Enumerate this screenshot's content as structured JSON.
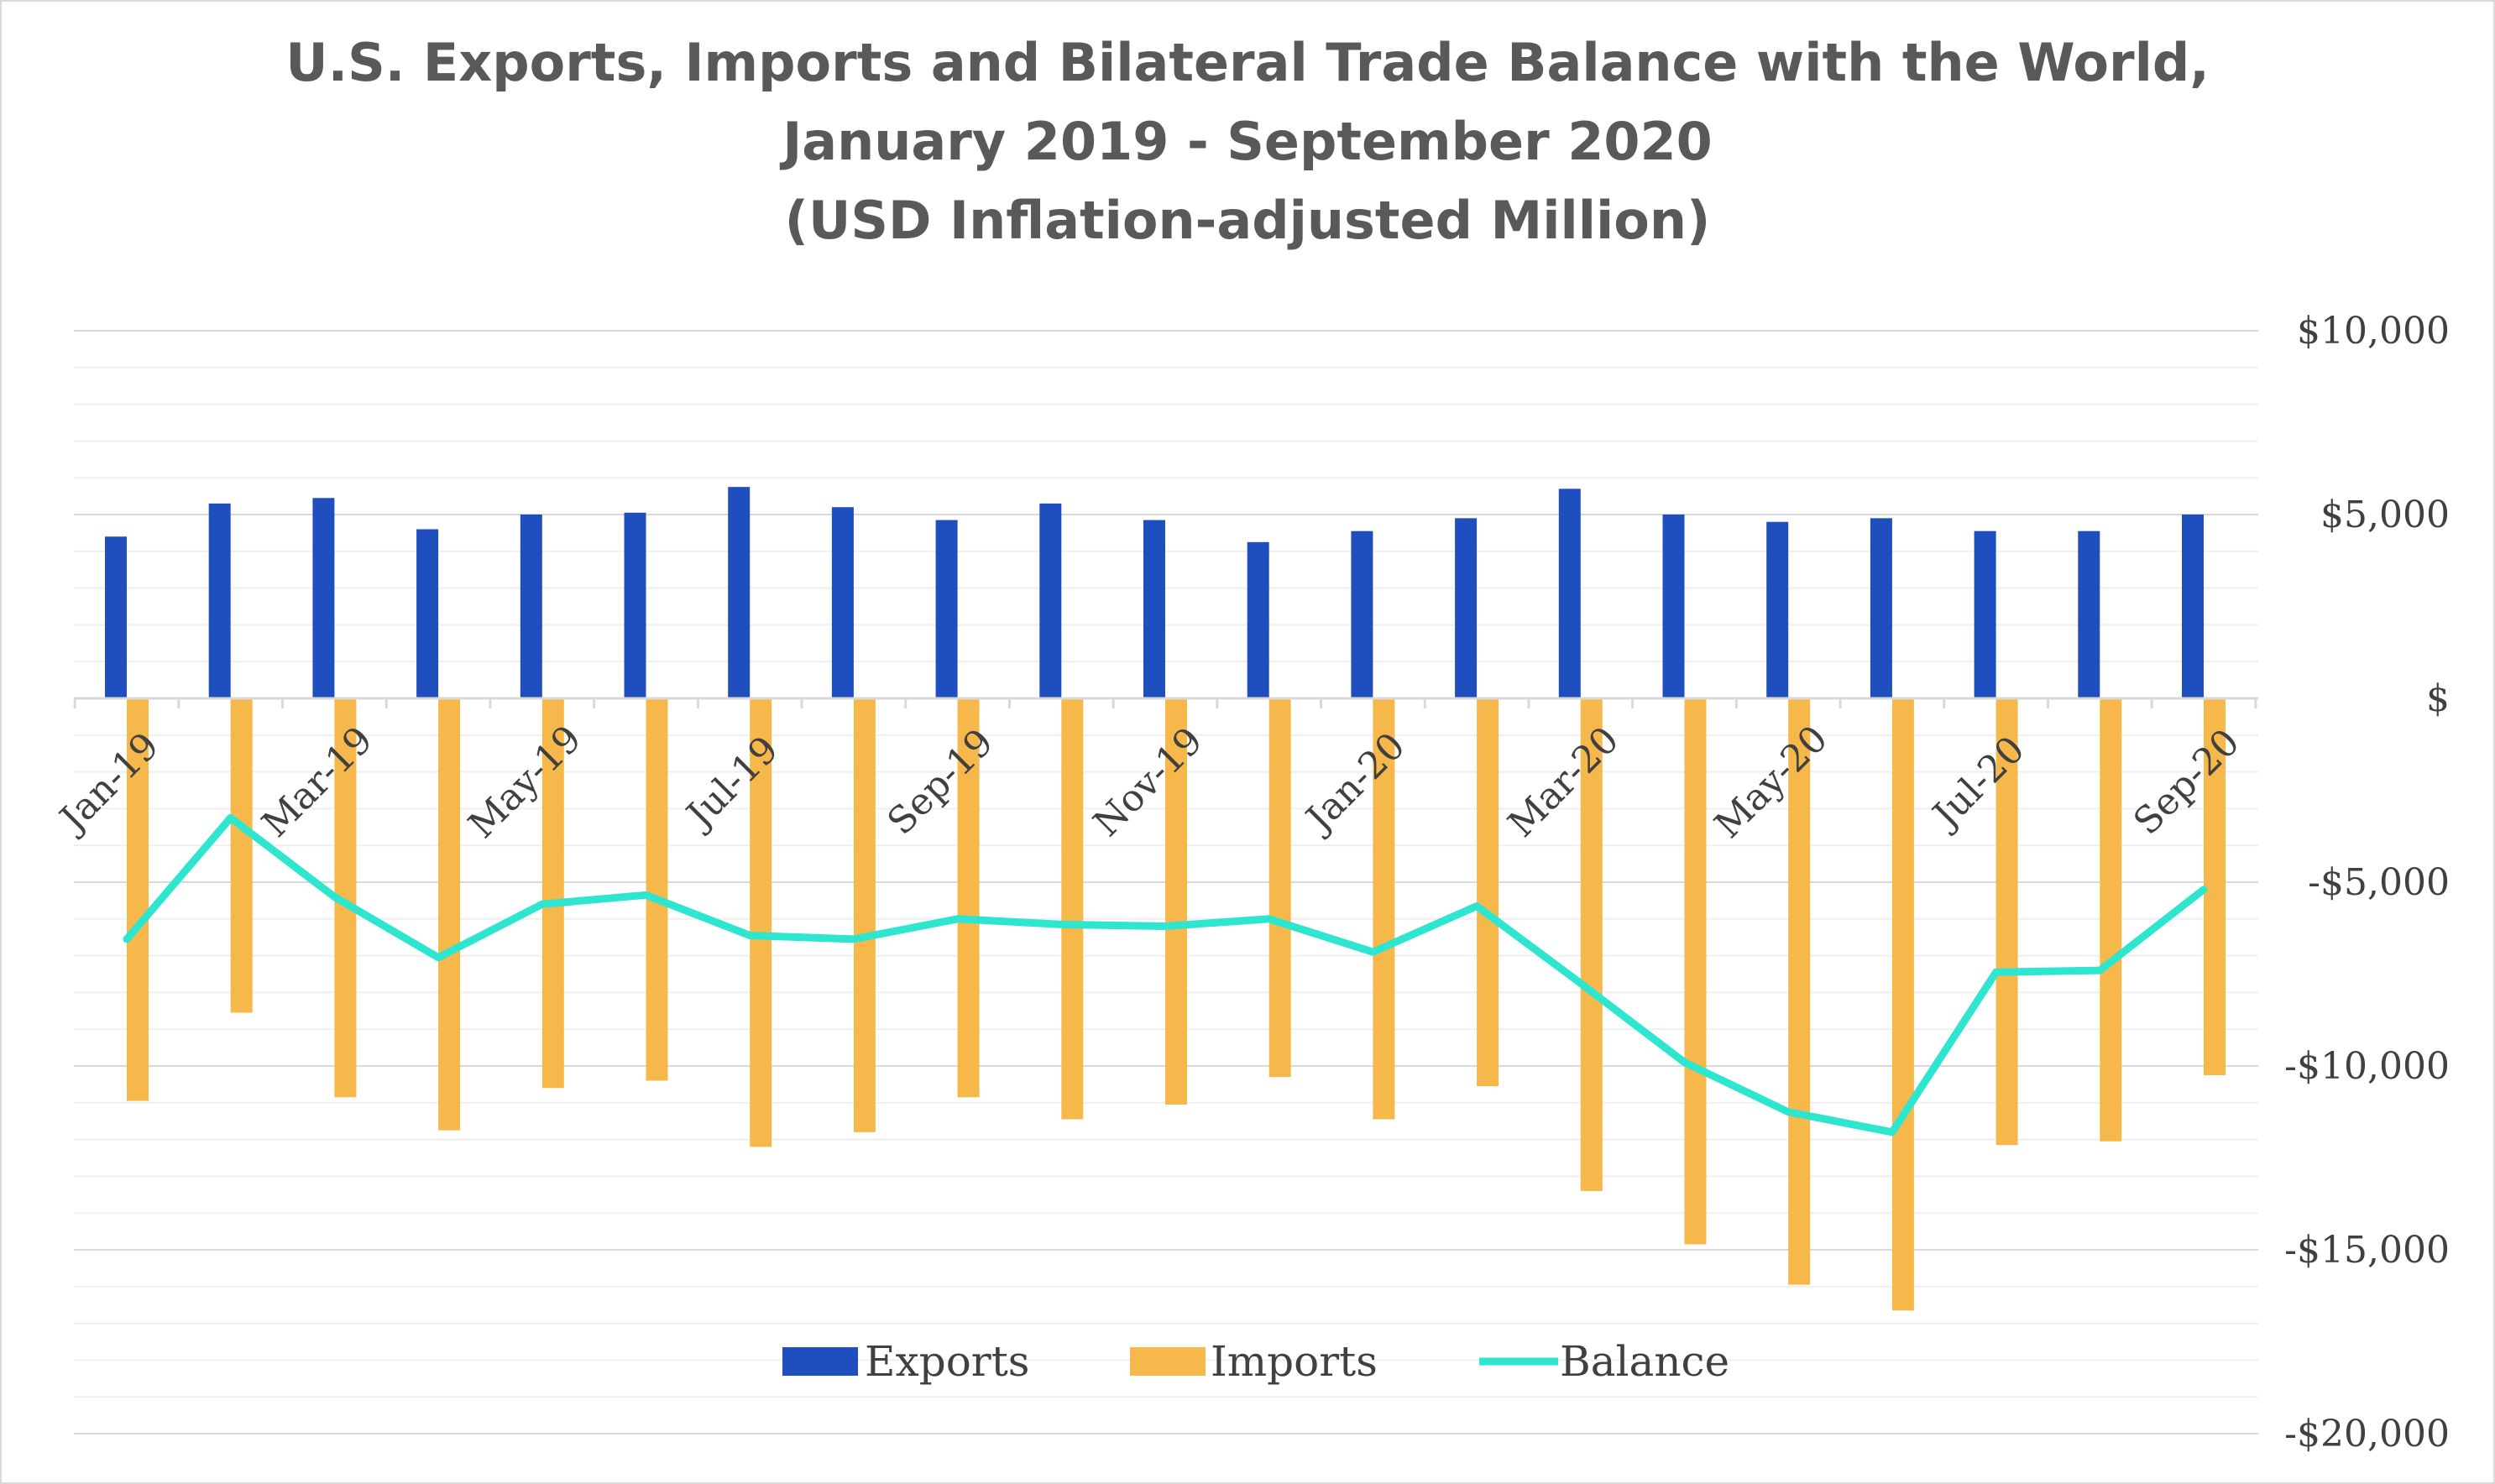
{
  "title": {
    "line1": "U.S. Exports, Imports and Bilateral Trade Balance with the World,",
    "line2": "January 2019 - September 2020",
    "line3": "(USD Inflation-adjusted Million)"
  },
  "colors": {
    "exports": "#1f4fbf",
    "imports": "#f6b84b",
    "balance": "#2ee6d0"
  },
  "chart_data": {
    "type": "bar+line",
    "title": "U.S. Exports, Imports and Bilateral Trade Balance with the World, January 2019 - September 2020 (USD Inflation-adjusted Million)",
    "categories": [
      "Jan-19",
      "Feb-19",
      "Mar-19",
      "Apr-19",
      "May-19",
      "Jun-19",
      "Jul-19",
      "Aug-19",
      "Sep-19",
      "Oct-19",
      "Nov-19",
      "Dec-19",
      "Jan-20",
      "Feb-20",
      "Mar-20",
      "Apr-20",
      "May-20",
      "Jun-20",
      "Jul-20",
      "Aug-20",
      "Sep-20"
    ],
    "x_tick_labels": [
      "Jan-19",
      "Mar-19",
      "May-19",
      "Jul-19",
      "Sep-19",
      "Nov-19",
      "Jan-20",
      "Mar-20",
      "May-20",
      "Jul-20",
      "Sep-20"
    ],
    "x_tick_indices": [
      0,
      2,
      4,
      6,
      8,
      10,
      12,
      14,
      16,
      18,
      20
    ],
    "series": [
      {
        "name": "Exports",
        "type": "bar",
        "values": [
          4400,
          5300,
          5450,
          4600,
          5000,
          5050,
          5750,
          5200,
          4850,
          5300,
          4850,
          4250,
          4550,
          4900,
          5700,
          5000,
          4800,
          4900,
          4550,
          4550,
          5000
        ]
      },
      {
        "name": "Imports",
        "type": "bar",
        "values": [
          -10950,
          -8550,
          -10850,
          -11750,
          -10600,
          -10400,
          -12200,
          -11800,
          -10850,
          -11450,
          -11050,
          -10300,
          -11450,
          -10550,
          -13400,
          -14850,
          -15950,
          -16650,
          -12150,
          -12050,
          -10250
        ]
      },
      {
        "name": "Balance",
        "type": "line",
        "values": [
          -6550,
          -3250,
          -5400,
          -7050,
          -5600,
          -5350,
          -6450,
          -6550,
          -6000,
          -6150,
          -6200,
          -6000,
          -6900,
          -5650,
          -7750,
          -9900,
          -11250,
          -11800,
          -7450,
          -7400,
          -5200
        ]
      }
    ],
    "y_tick_labels": [
      "$10,000",
      "$5,000",
      "$",
      "-$5,000",
      "-$10,000",
      "-$15,000",
      "-$20,000"
    ],
    "y_tick_values": [
      10000,
      5000,
      0,
      -5000,
      -10000,
      -15000,
      -20000
    ],
    "ylim": [
      -20000,
      10000
    ],
    "ylabel": "",
    "xlabel": "",
    "legend": [
      "Exports",
      "Imports",
      "Balance"
    ],
    "legend_position": "bottom-center",
    "grid": true
  }
}
